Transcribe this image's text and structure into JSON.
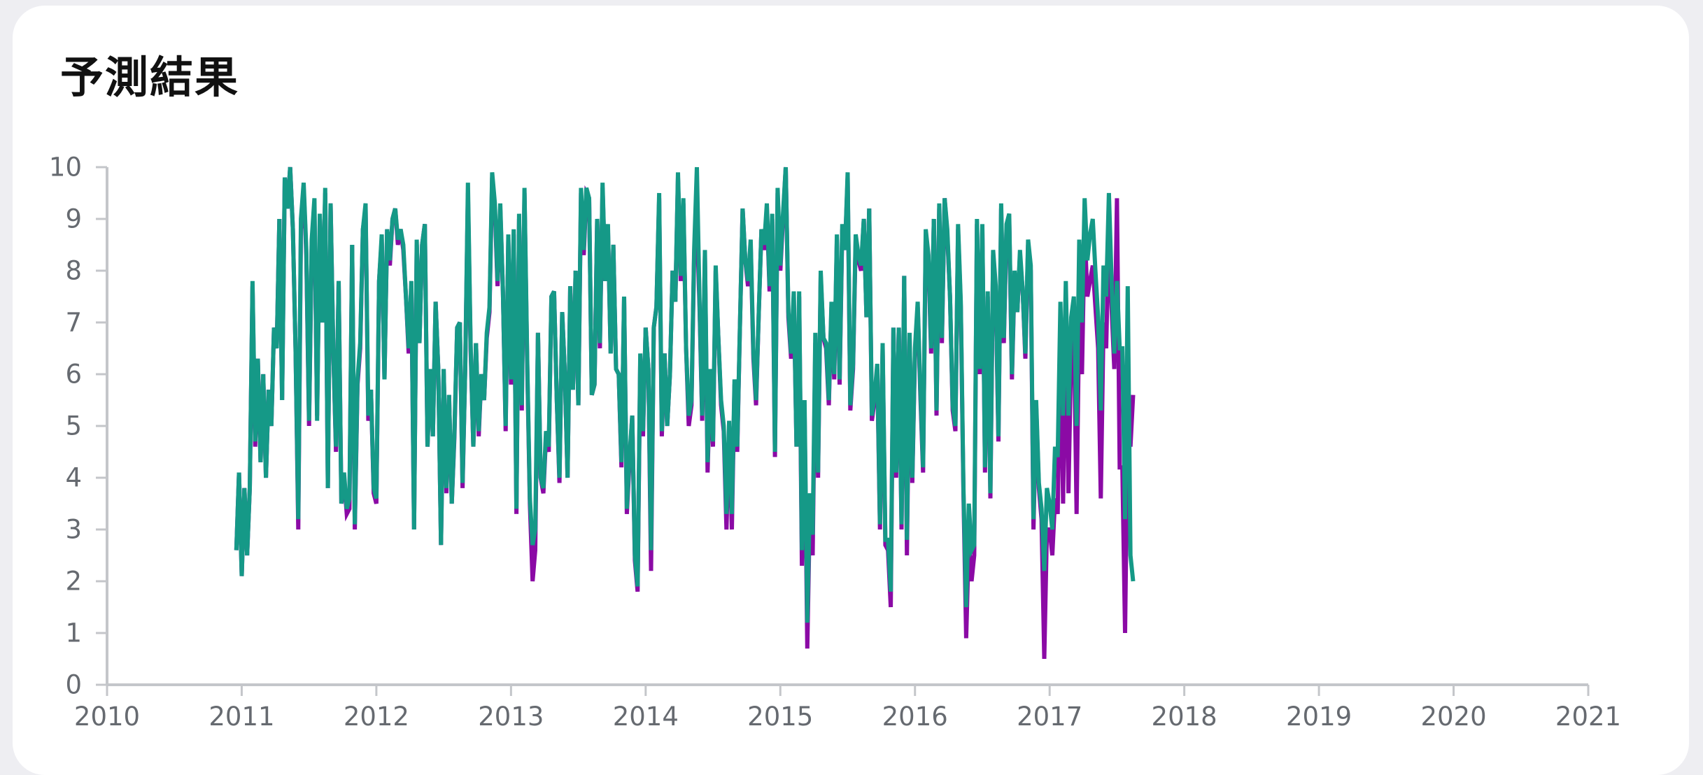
{
  "card": {
    "title": "予測結果"
  },
  "chart_data": {
    "type": "line",
    "title": "予測結果",
    "xlabel": "",
    "ylabel": "",
    "xlim": [
      2010,
      2021
    ],
    "ylim": [
      0,
      10
    ],
    "x_ticks": [
      "2010",
      "2011",
      "2012",
      "2013",
      "2014",
      "2015",
      "2016",
      "2017",
      "2018",
      "2019",
      "2020",
      "2021"
    ],
    "y_ticks": [
      "0",
      "1",
      "2",
      "3",
      "4",
      "5",
      "6",
      "7",
      "8",
      "9",
      "10"
    ],
    "grid": false,
    "x_start": 2010.96,
    "x_step": 0.02,
    "series": [
      {
        "color": "#8b0aa5",
        "values": [
          2.6,
          4.1,
          2.1,
          3.8,
          2.5,
          3.8,
          7.7,
          4.6,
          6.3,
          4.3,
          6.0,
          4.0,
          5.7,
          5.0,
          6.9,
          6.5,
          9.0,
          5.5,
          9.8,
          9.2,
          10.0,
          8.8,
          6.5,
          3.0,
          8.8,
          9.6,
          8.3,
          5.0,
          8.5,
          9.2,
          5.2,
          9.0,
          7.0,
          9.5,
          3.8,
          9.3,
          6.5,
          4.5,
          7.8,
          3.5,
          4.0,
          3.3,
          3.4,
          8.5,
          3.0,
          5.8,
          6.5,
          8.8,
          9.2,
          5.1,
          5.7,
          3.7,
          3.5,
          7.8,
          8.6,
          5.9,
          8.8,
          8.1,
          9.0,
          9.2,
          8.5,
          8.8,
          8.4,
          7.5,
          6.4,
          7.7,
          3.0,
          8.5,
          6.6,
          8.5,
          8.9,
          4.6,
          6.1,
          4.8,
          7.4,
          6.1,
          2.7,
          6.1,
          3.7,
          5.6,
          3.5,
          4.8,
          6.9,
          7.0,
          3.8,
          6.1,
          9.5,
          6.5,
          4.6,
          6.6,
          4.8,
          6.0,
          5.5,
          6.7,
          7.2,
          9.8,
          9.2,
          7.7,
          9.2,
          7.6,
          4.9,
          8.6,
          5.8,
          8.7,
          3.3,
          9.0,
          5.3,
          9.5,
          6.2,
          3.5,
          2.0,
          2.6,
          6.8,
          4.0,
          3.7,
          4.8,
          4.5,
          7.5,
          7.6,
          5.5,
          3.9,
          7.2,
          6.0,
          4.0,
          7.7,
          5.7,
          8.0,
          5.4,
          9.5,
          8.3,
          9.5,
          9.4,
          5.6,
          5.8,
          9.0,
          6.5,
          9.6,
          7.8,
          8.8,
          6.4,
          8.5,
          6.1,
          6.0,
          4.2,
          7.5,
          3.3,
          4.3,
          5.2,
          2.4,
          1.8,
          6.3,
          4.8,
          6.9,
          6.1,
          2.2,
          6.9,
          7.3,
          9.4,
          4.8,
          6.4,
          5.0,
          6.0,
          8.0,
          7.4,
          9.8,
          7.8,
          9.3,
          6.5,
          5.0,
          5.4,
          8.3,
          9.0,
          7.3,
          5.1,
          8.3,
          4.1,
          6.0,
          4.6,
          8.0,
          6.7,
          5.4,
          4.9,
          3.0,
          5.0,
          3.0,
          5.8,
          4.5,
          6.9,
          9.2,
          8.2,
          7.7,
          8.5,
          6.3,
          5.4,
          7.2,
          8.8,
          8.4,
          9.2,
          7.6,
          9.0,
          4.4,
          9.5,
          8.0,
          9.0,
          10.0,
          7.1,
          6.3,
          7.5,
          4.6,
          7.5,
          2.3,
          5.3,
          0.7,
          3.5,
          2.5,
          6.6,
          4.0,
          7.9,
          6.7,
          6.5,
          5.4,
          7.3,
          5.9,
          8.6,
          5.8,
          8.8,
          8.4,
          9.8,
          5.3,
          6.1,
          8.6,
          8.2,
          8.0,
          9.0,
          7.1,
          9.2,
          5.1,
          5.5,
          6.1,
          3.0,
          6.5,
          2.7,
          2.6,
          1.5,
          6.9,
          4.0,
          6.9,
          3.0,
          7.9,
          2.5,
          6.7,
          3.9,
          6.4,
          7.3,
          5.6,
          4.1,
          8.7,
          8.2,
          6.4,
          9.0,
          5.2,
          9.2,
          6.6,
          9.4,
          8.7,
          7.5,
          5.3,
          4.9,
          8.8,
          7.3,
          3.7,
          0.9,
          2.8,
          2.0,
          2.5,
          8.9,
          6.0,
          8.8,
          4.1,
          7.5,
          3.6,
          8.3,
          7.6,
          4.7,
          9.2,
          6.6,
          8.8,
          9.0,
          5.9,
          7.9,
          7.2,
          8.3,
          7.6,
          6.3,
          8.5,
          8.0,
          3.0,
          5.4,
          3.8,
          3.2,
          0.5,
          3.0,
          3.0,
          2.5,
          3.6,
          3.3,
          7.0,
          3.5,
          7.2,
          3.7,
          6.5,
          7.0,
          3.3,
          7.3,
          6.0,
          8.8,
          7.5,
          7.8,
          8.1,
          7.3,
          6.5,
          3.6,
          7.0,
          6.5,
          8.9,
          7.3,
          6.1,
          9.4,
          4.2,
          4.2,
          1.0,
          5.2,
          4.6,
          5.6
        ]
      },
      {
        "color": "#159987",
        "values": [
          2.6,
          4.1,
          2.1,
          3.8,
          2.5,
          3.8,
          7.8,
          4.7,
          6.3,
          4.3,
          6.0,
          4.0,
          5.7,
          5.0,
          6.9,
          6.5,
          9.0,
          5.5,
          9.8,
          9.2,
          10.0,
          8.8,
          6.5,
          3.2,
          9.0,
          9.7,
          8.4,
          5.1,
          8.6,
          9.4,
          5.1,
          9.1,
          7.0,
          9.6,
          3.8,
          9.3,
          6.5,
          4.6,
          7.8,
          3.5,
          4.1,
          3.4,
          3.6,
          8.5,
          3.1,
          5.9,
          6.6,
          8.8,
          9.3,
          5.2,
          5.7,
          3.8,
          3.6,
          7.8,
          8.7,
          5.9,
          8.8,
          8.2,
          9.0,
          9.2,
          8.6,
          8.8,
          8.5,
          7.5,
          6.5,
          7.8,
          3.0,
          8.6,
          6.6,
          8.5,
          8.9,
          4.6,
          6.1,
          4.8,
          7.4,
          6.1,
          2.7,
          6.1,
          3.8,
          5.6,
          3.5,
          4.9,
          6.9,
          7.0,
          3.9,
          6.1,
          9.7,
          6.6,
          4.6,
          6.6,
          4.9,
          6.0,
          5.5,
          6.8,
          7.3,
          9.9,
          9.3,
          7.8,
          9.3,
          7.6,
          5.0,
          8.7,
          5.9,
          8.8,
          3.4,
          9.1,
          5.4,
          9.6,
          6.3,
          3.6,
          2.7,
          3.0,
          6.8,
          4.0,
          3.8,
          4.9,
          4.6,
          7.5,
          7.6,
          5.5,
          4.0,
          7.2,
          6.0,
          4.0,
          7.7,
          5.7,
          8.0,
          5.4,
          9.6,
          8.4,
          9.6,
          9.4,
          5.6,
          5.8,
          9.0,
          6.6,
          9.7,
          7.8,
          8.9,
          6.4,
          8.5,
          6.1,
          6.0,
          4.3,
          7.5,
          3.4,
          4.4,
          5.2,
          2.5,
          1.9,
          6.4,
          4.9,
          6.9,
          6.1,
          2.6,
          6.9,
          7.3,
          9.5,
          4.9,
          6.4,
          5.0,
          6.0,
          8.0,
          7.4,
          9.9,
          7.9,
          9.4,
          6.5,
          5.2,
          5.5,
          8.4,
          10.0,
          7.4,
          5.2,
          8.4,
          4.3,
          6.1,
          4.7,
          8.1,
          6.7,
          5.5,
          5.0,
          3.3,
          5.1,
          3.3,
          5.9,
          4.6,
          6.9,
          9.2,
          8.2,
          7.8,
          8.6,
          6.4,
          5.5,
          7.2,
          8.8,
          8.5,
          9.3,
          7.7,
          9.1,
          4.5,
          9.6,
          8.1,
          9.1,
          10.0,
          7.2,
          6.4,
          7.6,
          4.6,
          7.6,
          2.6,
          5.5,
          1.2,
          3.7,
          2.9,
          6.8,
          4.1,
          8.0,
          6.7,
          6.6,
          5.5,
          7.4,
          6.0,
          8.7,
          5.9,
          8.9,
          8.4,
          9.9,
          5.4,
          6.2,
          8.7,
          8.3,
          8.1,
          9.0,
          7.1,
          9.2,
          5.2,
          5.6,
          6.2,
          3.1,
          6.6,
          2.8,
          2.8,
          1.8,
          6.9,
          4.1,
          6.9,
          3.1,
          7.9,
          2.8,
          6.8,
          4.0,
          6.5,
          7.4,
          5.7,
          4.2,
          8.8,
          8.3,
          6.5,
          9.0,
          5.3,
          9.3,
          6.7,
          9.4,
          8.8,
          7.5,
          5.4,
          5.0,
          8.9,
          7.4,
          3.8,
          1.5,
          3.5,
          2.6,
          2.7,
          9.0,
          6.1,
          8.9,
          4.2,
          7.6,
          3.7,
          8.4,
          7.7,
          4.8,
          9.3,
          6.7,
          8.9,
          9.1,
          6.0,
          8.0,
          7.2,
          8.4,
          7.6,
          6.4,
          8.6,
          8.1,
          3.2,
          5.5,
          3.9,
          3.4,
          2.2,
          3.8,
          3.5,
          3.0,
          4.6,
          4.4,
          7.4,
          5.2,
          7.8,
          5.2,
          7.1,
          7.5,
          5.0,
          8.6,
          7.0,
          9.4,
          8.2,
          8.7,
          9.0,
          8.0,
          7.1,
          5.3,
          8.1,
          7.5,
          9.5,
          7.8,
          6.4,
          7.8,
          6.5,
          6.5,
          3.2,
          7.7,
          2.5,
          2.0
        ]
      }
    ]
  }
}
